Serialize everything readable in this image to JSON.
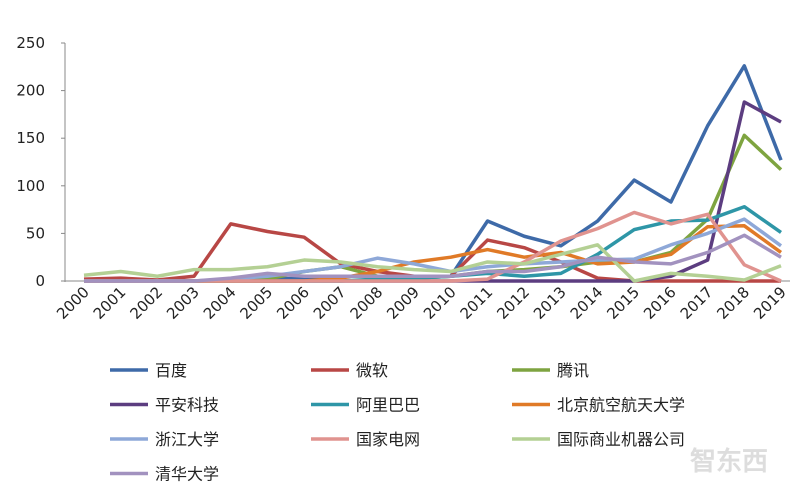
{
  "chart_data": {
    "type": "line",
    "x": [
      "2000",
      "2001",
      "2002",
      "2003",
      "2004",
      "2005",
      "2006",
      "2007",
      "2008",
      "2009",
      "2010",
      "2011",
      "2012",
      "2013",
      "2014",
      "2015",
      "2016",
      "2017",
      "2018",
      "2019"
    ],
    "ylim": [
      0,
      250
    ],
    "yticks": [
      0,
      50,
      100,
      150,
      200,
      250
    ],
    "series": [
      {
        "name": "百度",
        "color": "#3e6aa8",
        "values": [
          0,
          1,
          0,
          0,
          1,
          2,
          3,
          5,
          5,
          3,
          5,
          63,
          47,
          37,
          63,
          106,
          83,
          163,
          226,
          127
        ]
      },
      {
        "name": "微软",
        "color": "#b84745",
        "values": [
          2,
          3,
          1,
          5,
          60,
          52,
          46,
          18,
          10,
          5,
          5,
          43,
          35,
          20,
          3,
          0,
          0,
          0,
          0,
          0
        ]
      },
      {
        "name": "腾讯",
        "color": "#7ea440",
        "values": [
          0,
          0,
          0,
          0,
          0,
          2,
          10,
          15,
          5,
          3,
          5,
          10,
          12,
          15,
          20,
          20,
          30,
          65,
          153,
          117
        ]
      },
      {
        "name": "平安科技",
        "color": "#5c3d80",
        "values": [
          0,
          0,
          0,
          0,
          0,
          0,
          0,
          0,
          0,
          0,
          0,
          0,
          0,
          0,
          0,
          0,
          5,
          22,
          188,
          167
        ]
      },
      {
        "name": "阿里巴巴",
        "color": "#2e96a7",
        "values": [
          0,
          0,
          0,
          0,
          0,
          0,
          0,
          0,
          2,
          3,
          5,
          8,
          5,
          8,
          28,
          54,
          63,
          64,
          78,
          51
        ]
      },
      {
        "name": "北京航空航天大学",
        "color": "#e07a27",
        "values": [
          0,
          0,
          0,
          0,
          0,
          0,
          0,
          3,
          10,
          20,
          25,
          33,
          25,
          30,
          18,
          20,
          28,
          57,
          58,
          30
        ]
      },
      {
        "name": "浙江大学",
        "color": "#8ea8d8",
        "values": [
          0,
          0,
          0,
          0,
          2,
          5,
          10,
          15,
          24,
          18,
          10,
          15,
          18,
          20,
          22,
          23,
          38,
          50,
          65,
          37
        ]
      },
      {
        "name": "国家电网",
        "color": "#e0938f",
        "values": [
          0,
          0,
          0,
          0,
          0,
          0,
          0,
          0,
          0,
          0,
          0,
          2,
          20,
          42,
          55,
          72,
          60,
          70,
          17,
          0
        ]
      },
      {
        "name": "国际商业机器公司",
        "color": "#b4d094",
        "values": [
          6,
          10,
          5,
          12,
          12,
          15,
          22,
          20,
          15,
          12,
          10,
          20,
          18,
          28,
          38,
          0,
          8,
          5,
          1,
          16
        ]
      },
      {
        "name": "清华大学",
        "color": "#a292bf",
        "values": [
          0,
          0,
          0,
          0,
          3,
          8,
          5,
          5,
          5,
          5,
          5,
          10,
          10,
          15,
          25,
          20,
          18,
          30,
          48,
          25
        ]
      }
    ]
  },
  "watermark": "智东西"
}
